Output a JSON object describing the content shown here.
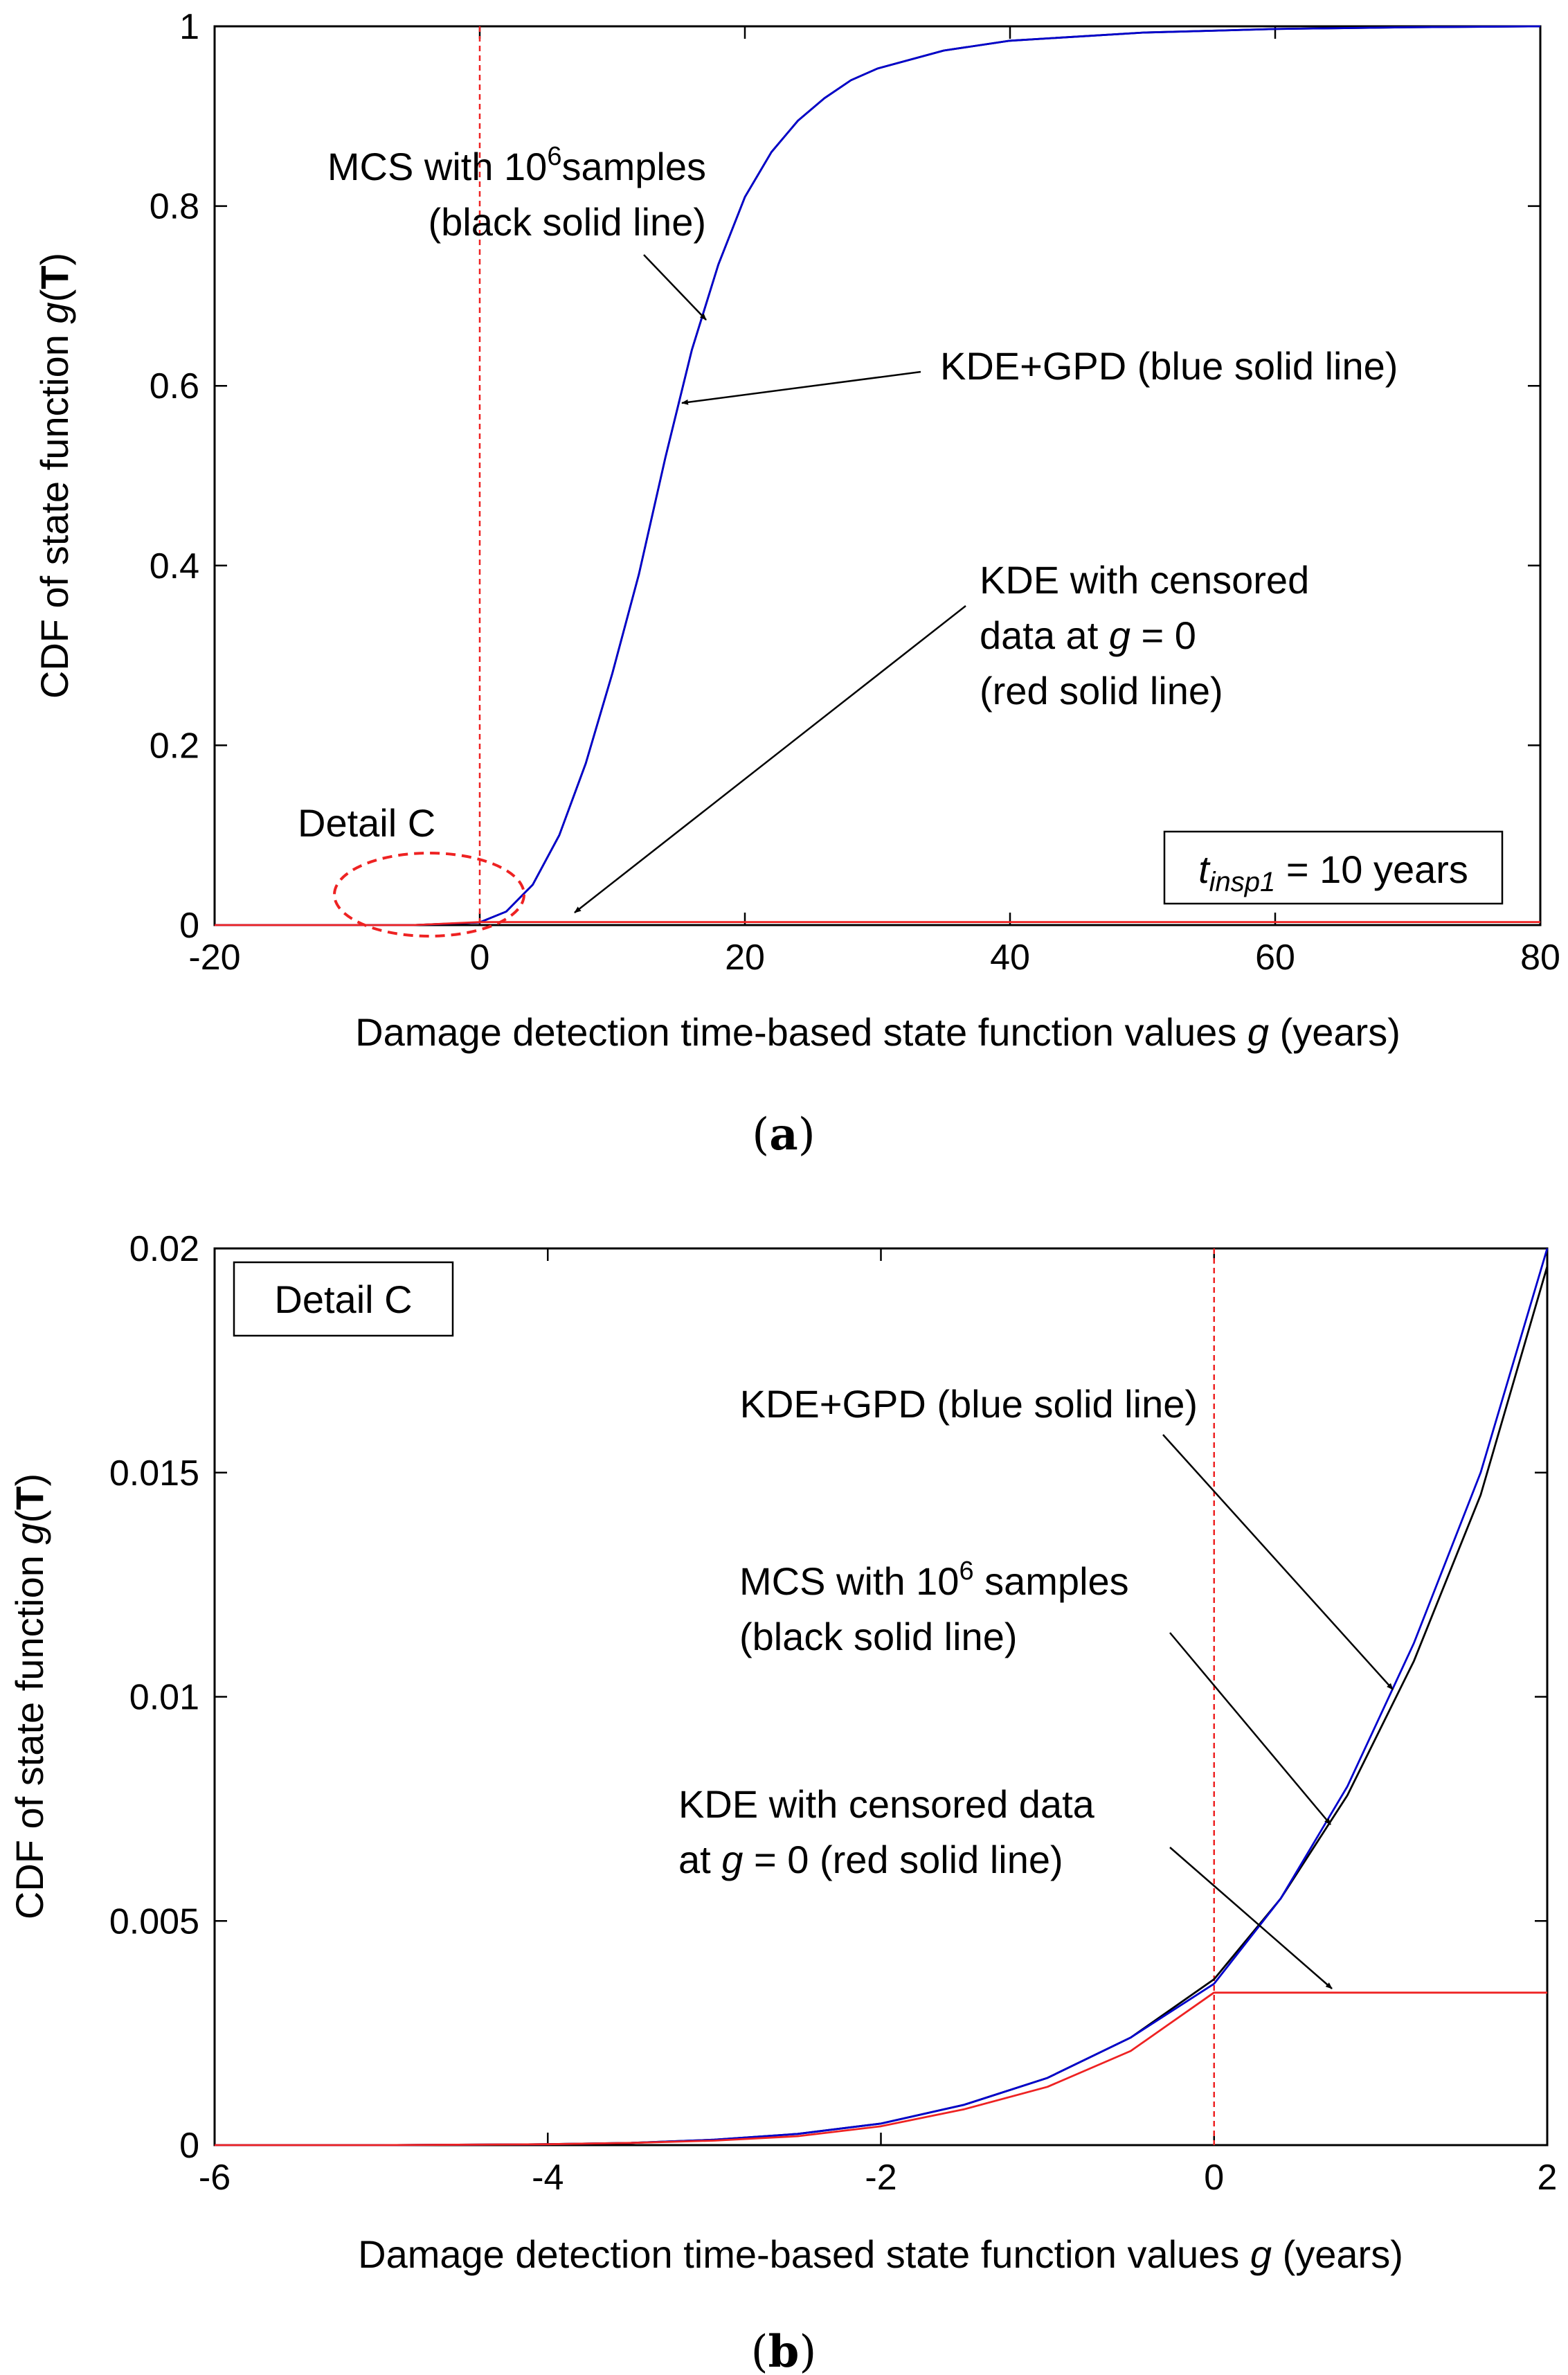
{
  "chart_data": [
    {
      "type": "line",
      "panel_label": "(a)",
      "panel_letter": "a",
      "xlabel": "Damage detection time-based state function values g (years)",
      "xlabel_parts": {
        "pre": "Damage detection time-based state function values ",
        "var": "g",
        "post": " (years)"
      },
      "ylabel": "CDF of state function g(T)",
      "ylabel_parts": {
        "pre": "CDF of state function ",
        "var": "g",
        "open": "(",
        "bold": "T",
        "close": ")"
      },
      "xlim": [
        -20,
        80
      ],
      "ylim": [
        0,
        1
      ],
      "xticks": [
        -20,
        0,
        20,
        40,
        60,
        80
      ],
      "xtick_labels": [
        "-20",
        "0",
        "20",
        "40",
        "60",
        "80"
      ],
      "yticks": [
        0,
        0.2,
        0.4,
        0.6,
        0.8,
        1
      ],
      "ytick_labels": [
        "0",
        "0.2",
        "0.4",
        "0.6",
        "0.8",
        "1"
      ],
      "vline_x": 0,
      "series": [
        {
          "name": "MCS with 10^6 samples",
          "color": "#000000",
          "x": [
            -20,
            -10,
            -5,
            0,
            2,
            4,
            6,
            8,
            10,
            12,
            14,
            16,
            18,
            20,
            22,
            24,
            26,
            28,
            30,
            35,
            40,
            50,
            60,
            70,
            80
          ],
          "y": [
            0,
            0,
            0,
            0.003,
            0.015,
            0.045,
            0.1,
            0.18,
            0.28,
            0.39,
            0.52,
            0.64,
            0.735,
            0.81,
            0.86,
            0.895,
            0.92,
            0.94,
            0.953,
            0.973,
            0.984,
            0.993,
            0.997,
            0.999,
            1.0
          ]
        },
        {
          "name": "KDE+GPD",
          "color": "#0000cc",
          "x": [
            -20,
            -10,
            -5,
            0,
            2,
            4,
            6,
            8,
            10,
            12,
            14,
            16,
            18,
            20,
            22,
            24,
            26,
            28,
            30,
            35,
            40,
            50,
            60,
            70,
            80
          ],
          "y": [
            0,
            0,
            0,
            0.003,
            0.015,
            0.045,
            0.1,
            0.18,
            0.28,
            0.39,
            0.52,
            0.64,
            0.735,
            0.81,
            0.86,
            0.895,
            0.92,
            0.94,
            0.953,
            0.973,
            0.984,
            0.993,
            0.997,
            0.999,
            1.0
          ]
        },
        {
          "name": "KDE with censored data at g = 0",
          "color": "#ee2222",
          "x": [
            -20,
            -10,
            -5,
            0,
            80
          ],
          "y": [
            0,
            0,
            0,
            0.0034,
            0.0034
          ]
        }
      ],
      "annotations": {
        "mcs": {
          "line1_pre": "MCS with 10",
          "line1_sup": "6",
          "line1_post": "samples",
          "line2": "(black solid line)"
        },
        "kde_gpd": {
          "text": "KDE+GPD (blue solid line)"
        },
        "kde_cens": {
          "line1": "KDE with censored",
          "line2_pre": "data at ",
          "line2_var": "g",
          "line2_post": " = 0",
          "line3": "(red solid line)"
        },
        "detail": {
          "text": "Detail C"
        },
        "legend": {
          "var": "t",
          "sub": "insp1",
          "post": " = 10 years"
        }
      }
    },
    {
      "type": "line",
      "panel_label": "(b)",
      "panel_letter": "b",
      "xlabel": "Damage detection time-based state function values g (years)",
      "xlabel_parts": {
        "pre": "Damage detection time-based state function values ",
        "var": "g",
        "post": " (years)"
      },
      "ylabel": "CDF of state function g(T)",
      "ylabel_parts": {
        "pre": "CDF of state function ",
        "var": "g",
        "open": "(",
        "bold": "T",
        "close": ")"
      },
      "xlim": [
        -6,
        2
      ],
      "ylim": [
        0,
        0.02
      ],
      "xticks": [
        -6,
        -4,
        -2,
        0,
        2
      ],
      "xtick_labels": [
        "-6",
        "-4",
        "-2",
        "0",
        "2"
      ],
      "yticks": [
        0,
        0.005,
        0.01,
        0.015,
        0.02
      ],
      "ytick_labels": [
        "0",
        "0.005",
        "0.01",
        "0.015",
        "0.02"
      ],
      "vline_x": 0,
      "series": [
        {
          "name": "MCS with 10^6 samples",
          "color": "#000000",
          "x": [
            -6,
            -5,
            -4,
            -3.5,
            -3,
            -2.5,
            -2,
            -1.5,
            -1,
            -0.5,
            0,
            0.4,
            0.8,
            1.2,
            1.6,
            2.0
          ],
          "y": [
            0,
            0,
            2e-05,
            5e-05,
            0.00012,
            0.00025,
            0.00048,
            0.0009,
            0.0015,
            0.0024,
            0.0037,
            0.0055,
            0.0078,
            0.0108,
            0.0145,
            0.0196
          ]
        },
        {
          "name": "KDE+GPD",
          "color": "#0000cc",
          "x": [
            -6,
            -5,
            -4,
            -3.5,
            -3,
            -2.5,
            -2,
            -1.5,
            -1,
            -0.5,
            0,
            0.4,
            0.8,
            1.2,
            1.6,
            2.0
          ],
          "y": [
            0,
            0,
            2e-05,
            5e-05,
            0.00012,
            0.00025,
            0.00048,
            0.0009,
            0.0015,
            0.0024,
            0.0036,
            0.0055,
            0.008,
            0.0112,
            0.015,
            0.02
          ]
        },
        {
          "name": "KDE with censored data at g = 0",
          "color": "#ee2222",
          "x": [
            -6,
            -5,
            -4,
            -3.5,
            -3,
            -2.5,
            -2,
            -1.5,
            -1,
            -0.5,
            -0.001,
            0,
            2
          ],
          "y": [
            0,
            0,
            2e-05,
            5e-05,
            0.0001,
            0.0002,
            0.00042,
            0.0008,
            0.0013,
            0.0021,
            0.0034,
            0.0034,
            0.0034
          ]
        }
      ],
      "annotations": {
        "kde_gpd": {
          "text": "KDE+GPD (blue solid line)"
        },
        "mcs": {
          "line1_pre": "MCS with 10",
          "line1_sup": "6",
          "line1_post": " samples",
          "line2": "(black solid line)"
        },
        "kde_cens": {
          "line1": "KDE with censored data",
          "line2_pre": "at ",
          "line2_var": "g",
          "line2_post": " = 0 (red solid line)"
        },
        "detail": {
          "text": "Detail C"
        }
      }
    }
  ]
}
